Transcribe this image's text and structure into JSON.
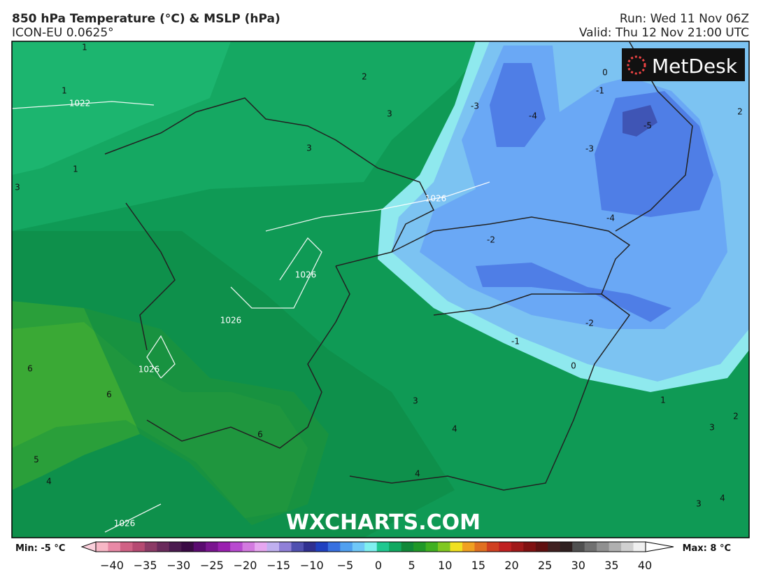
{
  "header": {
    "title": "850 hPa Temperature (°C) & MSLP (hPa)",
    "model": "ICON-EU 0.0625°",
    "run": "Run: Wed 11 Nov 06Z",
    "valid": "Valid: Thu 12 Nov 21:00 UTC"
  },
  "logo": "MetDesk",
  "watermark": "WXCHARTS.COM",
  "contour_labels": [
    "1",
    "1",
    "1022",
    "2",
    "3",
    "3",
    "1",
    "3",
    "-3",
    "-4",
    "0",
    "-1",
    "-3",
    "-5",
    "2",
    "1026",
    "-2",
    "-4",
    "1026",
    "1026",
    "-2",
    "-1",
    "0",
    "1026",
    "6",
    "6",
    "3",
    "1",
    "2",
    "3",
    "4",
    "6",
    "5",
    "4",
    "4",
    "3",
    "4",
    "1026"
  ],
  "colorbar": {
    "min_label": "Min: -5 °C",
    "max_label": "Max: 8 °C",
    "ticks": [
      "−40",
      "−35",
      "−30",
      "−25",
      "−20",
      "−15",
      "−10",
      "−5",
      "0",
      "5",
      "10",
      "15",
      "20",
      "25",
      "30",
      "35",
      "40"
    ]
  }
}
